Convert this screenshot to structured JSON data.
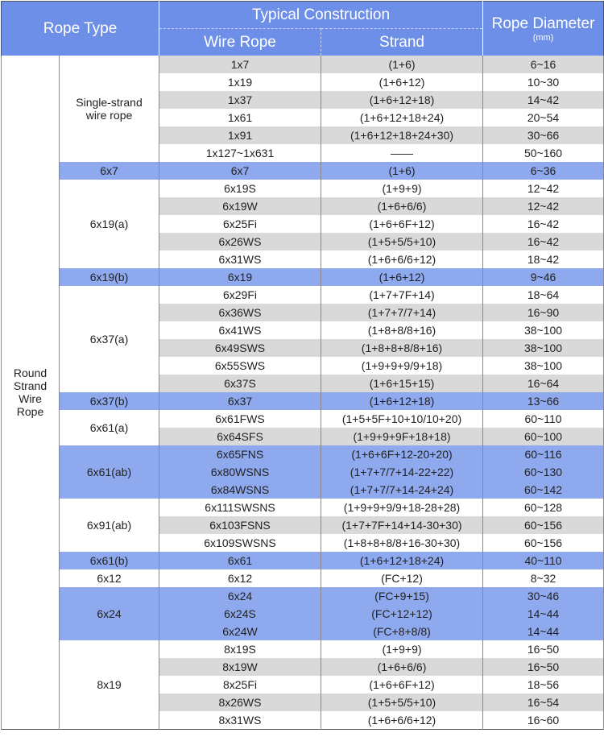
{
  "header": {
    "rope_type": "Rope Type",
    "typical_construction": "Typical Construction",
    "wire_rope": "Wire Rope",
    "strand": "Strand",
    "rope_diameter": "Rope Diameter",
    "unit": "(mm)"
  },
  "table": {
    "category": "Round Strand Wire Rope",
    "groups": [
      {
        "name": "Single-strand wire rope",
        "color": "#ffffff",
        "rows": [
          {
            "wire_rope": "1x7",
            "strand": "(1+6)",
            "diameter": "6~16",
            "color": "#d9d9d9"
          },
          {
            "wire_rope": "1x19",
            "strand": "(1+6+12)",
            "diameter": "10~30",
            "color": "#ffffff"
          },
          {
            "wire_rope": "1x37",
            "strand": "(1+6+12+18)",
            "diameter": "14~42",
            "color": "#d9d9d9"
          },
          {
            "wire_rope": "1x61",
            "strand": "(1+6+12+18+24)",
            "diameter": "20~54",
            "color": "#ffffff"
          },
          {
            "wire_rope": "1x91",
            "strand": "(1+6+12+18+24+30)",
            "diameter": "30~66",
            "color": "#d9d9d9"
          },
          {
            "wire_rope": "1x127~1x631",
            "strand": "——",
            "diameter": "50~160",
            "color": "#ffffff"
          }
        ]
      },
      {
        "name": "6x7",
        "color": "#8ea9ee",
        "rows": [
          {
            "wire_rope": "6x7",
            "strand": "(1+6)",
            "diameter": "6~36",
            "color": "#8ea9ee"
          }
        ]
      },
      {
        "name": "6x19(a)",
        "color": "#ffffff",
        "rows": [
          {
            "wire_rope": "6x19S",
            "strand": "(1+9+9)",
            "diameter": "12~42",
            "color": "#ffffff"
          },
          {
            "wire_rope": "6x19W",
            "strand": "(1+6+6/6)",
            "diameter": "12~42",
            "color": "#d9d9d9"
          },
          {
            "wire_rope": "6x25Fi",
            "strand": "(1+6+6F+12)",
            "diameter": "16~42",
            "color": "#ffffff"
          },
          {
            "wire_rope": "6x26WS",
            "strand": "(1+5+5/5+10)",
            "diameter": "16~42",
            "color": "#d9d9d9"
          },
          {
            "wire_rope": "6x31WS",
            "strand": "(1+6+6/6+12)",
            "diameter": "18~42",
            "color": "#ffffff"
          }
        ]
      },
      {
        "name": "6x19(b)",
        "color": "#8ea9ee",
        "rows": [
          {
            "wire_rope": "6x19",
            "strand": "(1+6+12)",
            "diameter": "9~46",
            "color": "#8ea9ee"
          }
        ]
      },
      {
        "name": "6x37(a)",
        "color": "#ffffff",
        "rows": [
          {
            "wire_rope": "6x29Fi",
            "strand": "(1+7+7F+14)",
            "diameter": "18~64",
            "color": "#ffffff"
          },
          {
            "wire_rope": "6x36WS",
            "strand": "(1+7+7/7+14)",
            "diameter": "16~90",
            "color": "#d9d9d9"
          },
          {
            "wire_rope": "6x41WS",
            "strand": "(1+8+8/8+16)",
            "diameter": "38~100",
            "color": "#ffffff"
          },
          {
            "wire_rope": "6x49SWS",
            "strand": "(1+8+8+8/8+16)",
            "diameter": "38~100",
            "color": "#d9d9d9"
          },
          {
            "wire_rope": "6x55SWS",
            "strand": "(1+9+9+9/9+18)",
            "diameter": "38~100",
            "color": "#ffffff"
          },
          {
            "wire_rope": "6x37S",
            "strand": "(1+6+15+15)",
            "diameter": "16~64",
            "color": "#d9d9d9"
          }
        ]
      },
      {
        "name": "6x37(b)",
        "color": "#8ea9ee",
        "rows": [
          {
            "wire_rope": "6x37",
            "strand": "(1+6+12+18)",
            "diameter": "13~66",
            "color": "#8ea9ee"
          }
        ]
      },
      {
        "name": "6x61(a)",
        "color": "#ffffff",
        "rows": [
          {
            "wire_rope": "6x61FWS",
            "strand": "(1+5+5F+10+10/10+20)",
            "diameter": "60~110",
            "color": "#ffffff"
          },
          {
            "wire_rope": "6x64SFS",
            "strand": "(1+9+9+9F+18+18)",
            "diameter": "60~100",
            "color": "#d9d9d9"
          }
        ]
      },
      {
        "name": "6x61(ab)",
        "color": "#8ea9ee",
        "rows": [
          {
            "wire_rope": "6x65FNS",
            "strand": "(1+6+6F+12-20+20)",
            "diameter": "60~116",
            "color": "#8ea9ee"
          },
          {
            "wire_rope": "6x80WSNS",
            "strand": "(1+7+7/7+14-22+22)",
            "diameter": "60~130",
            "color": "#8ea9ee"
          },
          {
            "wire_rope": "6x84WSNS",
            "strand": "(1+7+7/7+14-24+24)",
            "diameter": "60~142",
            "color": "#8ea9ee"
          }
        ]
      },
      {
        "name": "6x91(ab)",
        "color": "#ffffff",
        "rows": [
          {
            "wire_rope": "6x111SWSNS",
            "strand": "(1+9+9+9/9+18-28+28)",
            "diameter": "60~128",
            "color": "#ffffff"
          },
          {
            "wire_rope": "6x103FSNS",
            "strand": "(1+7+7F+14+14-30+30)",
            "diameter": "60~156",
            "color": "#d9d9d9"
          },
          {
            "wire_rope": "6x109SWSNS",
            "strand": "(1+8+8+8/8+16-30+30)",
            "diameter": "60~156",
            "color": "#ffffff"
          }
        ]
      },
      {
        "name": "6x61(b)",
        "color": "#8ea9ee",
        "rows": [
          {
            "wire_rope": "6x61",
            "strand": "(1+6+12+18+24)",
            "diameter": "40~110",
            "color": "#8ea9ee"
          }
        ]
      },
      {
        "name": "6x12",
        "color": "#ffffff",
        "rows": [
          {
            "wire_rope": "6x12",
            "strand": "(FC+12)",
            "diameter": "8~32",
            "color": "#ffffff"
          }
        ]
      },
      {
        "name": "6x24",
        "color": "#8ea9ee",
        "rows": [
          {
            "wire_rope": "6x24",
            "strand": "(FC+9+15)",
            "diameter": "30~46",
            "color": "#8ea9ee"
          },
          {
            "wire_rope": "6x24S",
            "strand": "(FC+12+12)",
            "diameter": "14~44",
            "color": "#8ea9ee"
          },
          {
            "wire_rope": "6x24W",
            "strand": "(FC+8+8/8)",
            "diameter": "14~44",
            "color": "#8ea9ee"
          }
        ]
      },
      {
        "name": "8x19",
        "color": "#ffffff",
        "rows": [
          {
            "wire_rope": "8x19S",
            "strand": "(1+9+9)",
            "diameter": "16~50",
            "color": "#ffffff"
          },
          {
            "wire_rope": "8x19W",
            "strand": "(1+6+6/6)",
            "diameter": "16~50",
            "color": "#d9d9d9"
          },
          {
            "wire_rope": "8x25Fi",
            "strand": "(1+6+6F+12)",
            "diameter": "18~56",
            "color": "#ffffff"
          },
          {
            "wire_rope": "8x26WS",
            "strand": "(1+5+5/5+10)",
            "diameter": "16~54",
            "color": "#d9d9d9"
          },
          {
            "wire_rope": "8x31WS",
            "strand": "(1+6+6/6+12)",
            "diameter": "16~60",
            "color": "#ffffff"
          }
        ]
      }
    ]
  }
}
